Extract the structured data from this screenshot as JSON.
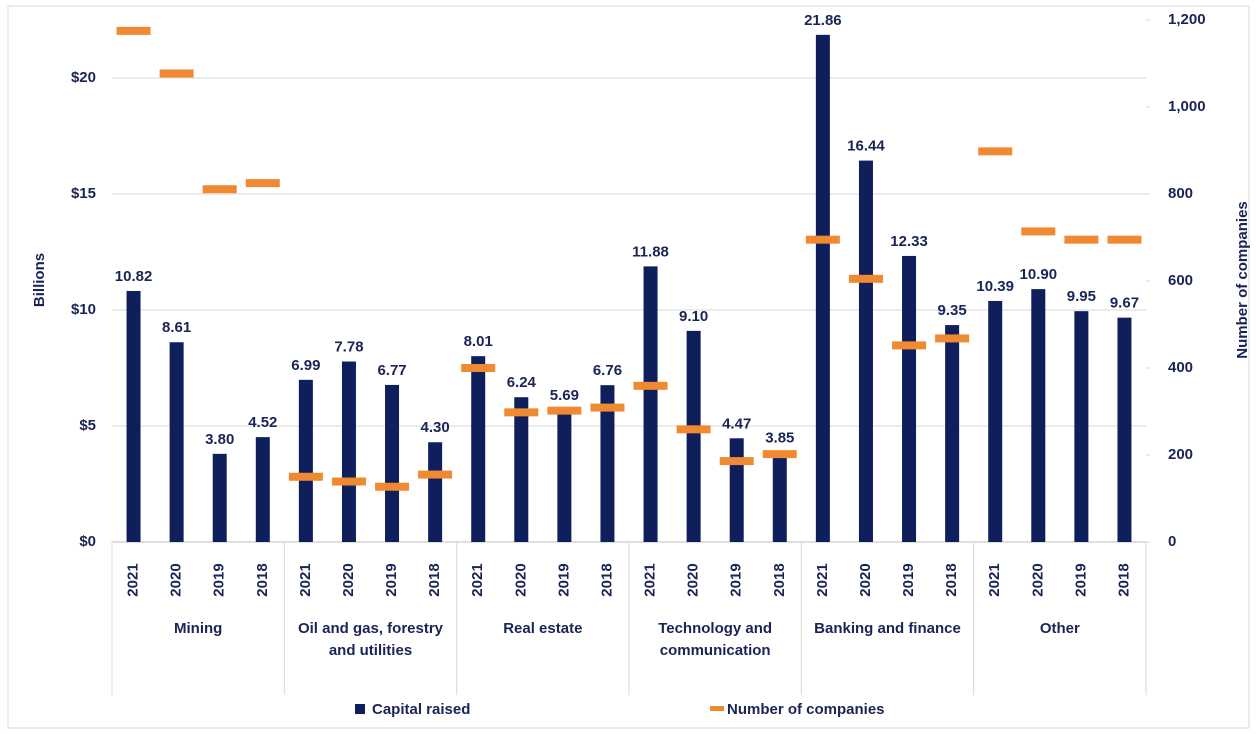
{
  "chart_data": {
    "type": "bar",
    "y_label": "Billions",
    "y2_label": "Number of companies",
    "categories": [
      "2021",
      "2020",
      "2019",
      "2018",
      "2021",
      "2020",
      "2019",
      "2018",
      "2021",
      "2020",
      "2019",
      "2018",
      "2021",
      "2020",
      "2019",
      "2018",
      "2021",
      "2020",
      "2019",
      "2018",
      "2021",
      "2020",
      "2019",
      "2018"
    ],
    "category_groups": [
      "Mining",
      "Oil and gas, forestry and utilities",
      "Real estate",
      "Technology and communication",
      "Banking and finance",
      "Other"
    ],
    "series": [
      {
        "name": "Capital raised",
        "type": "bar",
        "color": "#0e1f5b",
        "values": [
          10.82,
          8.61,
          3.8,
          4.52,
          6.99,
          7.78,
          6.77,
          4.3,
          8.01,
          6.24,
          5.69,
          6.76,
          11.88,
          9.1,
          4.47,
          3.85,
          21.86,
          16.44,
          12.33,
          9.35,
          10.39,
          10.9,
          9.95,
          9.67
        ],
        "value_labels": [
          "10.82",
          "8.61",
          "3.80",
          "4.52",
          "6.99",
          "7.78",
          "6.77",
          "4.30",
          "8.01",
          "6.24",
          "5.69",
          "6.76",
          "11.88",
          "9.10",
          "4.47",
          "3.85",
          "21.86",
          "16.44",
          "12.33",
          "9.35",
          "10.39",
          "10.90",
          "9.95",
          "9.67"
        ]
      },
      {
        "name": "Number of companies",
        "type": "dash",
        "axis": "y2",
        "color": "#f08a32",
        "values": [
          1175,
          1077,
          811,
          825,
          150,
          139,
          127,
          155,
          400,
          298,
          302,
          309,
          359,
          259,
          186,
          202,
          695,
          605,
          452,
          468,
          898,
          714,
          695,
          695
        ]
      }
    ],
    "ylim": [
      0,
      22.5
    ],
    "yticks": [
      {
        "value": 0,
        "label": "$0"
      },
      {
        "value": 5,
        "label": "$5"
      },
      {
        "value": 10,
        "label": "$10"
      },
      {
        "value": 15,
        "label": "$15"
      },
      {
        "value": 20,
        "label": "$20"
      }
    ],
    "y2lim": [
      0,
      1200
    ],
    "y2ticks": [
      0,
      200,
      400,
      600,
      800,
      {
        "value": 1000,
        "label": "1,000"
      },
      {
        "value": 1200,
        "label": "1,200"
      }
    ],
    "grid": true,
    "legend": "bottom"
  }
}
